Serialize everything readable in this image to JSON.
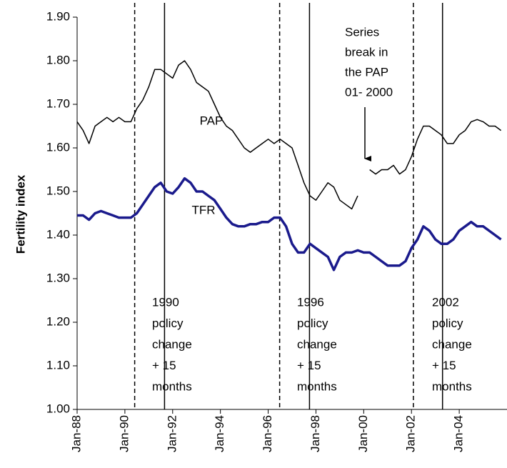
{
  "chart_data": {
    "type": "line",
    "y_label": "Fertility index",
    "x": [
      1988,
      1988.25,
      1988.5,
      1988.75,
      1989,
      1989.25,
      1989.5,
      1989.75,
      1990,
      1990.25,
      1990.5,
      1990.75,
      1991,
      1991.25,
      1991.5,
      1991.75,
      1992,
      1992.25,
      1992.5,
      1992.75,
      1993,
      1993.25,
      1993.5,
      1993.75,
      1994,
      1994.25,
      1994.5,
      1994.75,
      1995,
      1995.25,
      1995.5,
      1995.75,
      1996,
      1996.25,
      1996.5,
      1996.75,
      1997,
      1997.25,
      1997.5,
      1997.75,
      1998,
      1998.25,
      1998.5,
      1998.75,
      1999,
      1999.25,
      1999.5,
      1999.75,
      2000,
      2000.25,
      2000.5,
      2000.75,
      2001,
      2001.25,
      2001.5,
      2001.75,
      2002,
      2002.25,
      2002.5,
      2002.75,
      2003,
      2003.25,
      2003.5,
      2003.75,
      2004,
      2004.25,
      2004.5,
      2004.75,
      2005,
      2005.25,
      2005.5,
      2005.75
    ],
    "series": [
      {
        "name": "PAP",
        "color": "#000000",
        "width": 1.5,
        "values": [
          1.66,
          1.64,
          1.61,
          1.65,
          1.66,
          1.67,
          1.66,
          1.67,
          1.66,
          1.66,
          1.69,
          1.71,
          1.74,
          1.78,
          1.78,
          1.77,
          1.76,
          1.79,
          1.8,
          1.78,
          1.75,
          1.74,
          1.73,
          1.7,
          1.67,
          1.65,
          1.64,
          1.62,
          1.6,
          1.59,
          1.6,
          1.61,
          1.62,
          1.61,
          1.62,
          1.61,
          1.6,
          1.56,
          1.52,
          1.49,
          1.48,
          1.5,
          1.52,
          1.51,
          1.48,
          1.47,
          1.46,
          1.49,
          null,
          1.55,
          1.54,
          1.55,
          1.55,
          1.56,
          1.54,
          1.55,
          1.58,
          1.62,
          1.65,
          1.65,
          1.64,
          1.63,
          1.61,
          1.61,
          1.63,
          1.64,
          1.66,
          1.665,
          1.66,
          1.65,
          1.65,
          1.64
        ]
      },
      {
        "name": "TFR",
        "color": "#1a1a8c",
        "width": 3.5,
        "values": [
          1.445,
          1.445,
          1.435,
          1.45,
          1.455,
          1.45,
          1.445,
          1.44,
          1.44,
          1.44,
          1.45,
          1.47,
          1.49,
          1.51,
          1.52,
          1.5,
          1.495,
          1.51,
          1.53,
          1.52,
          1.5,
          1.5,
          1.49,
          1.48,
          1.46,
          1.44,
          1.425,
          1.42,
          1.42,
          1.425,
          1.425,
          1.43,
          1.43,
          1.44,
          1.44,
          1.42,
          1.38,
          1.36,
          1.36,
          1.38,
          1.37,
          1.36,
          1.35,
          1.32,
          1.35,
          1.36,
          1.36,
          1.365,
          1.36,
          1.36,
          1.35,
          1.34,
          1.33,
          1.33,
          1.33,
          1.34,
          1.37,
          1.39,
          1.42,
          1.41,
          1.39,
          1.38,
          1.38,
          1.39,
          1.41,
          1.42,
          1.43,
          1.42,
          1.42,
          1.41,
          1.4,
          1.39
        ]
      }
    ],
    "xlim": [
      1988,
      2006
    ],
    "xticks": [
      {
        "value": 1988,
        "label": "Jan-88"
      },
      {
        "value": 1990,
        "label": "Jan-90"
      },
      {
        "value": 1992,
        "label": "Jan-92"
      },
      {
        "value": 1994,
        "label": "Jan-94"
      },
      {
        "value": 1996,
        "label": "Jan-96"
      },
      {
        "value": 1998,
        "label": "Jan-98"
      },
      {
        "value": 2000,
        "label": "Jan-00"
      },
      {
        "value": 2002,
        "label": "Jan-02"
      },
      {
        "value": 2004,
        "label": "Jan-04"
      }
    ],
    "ylim": [
      1.0,
      1.9
    ],
    "yticks": [
      {
        "value": 1,
        "label": "1.00"
      },
      {
        "value": 1.1,
        "label": "1.10"
      },
      {
        "value": 1.2,
        "label": "1.20"
      },
      {
        "value": 1.3,
        "label": "1.30"
      },
      {
        "value": 1.4,
        "label": "1.40"
      },
      {
        "value": 1.5,
        "label": "1.50"
      },
      {
        "value": 1.6,
        "label": "1.60"
      },
      {
        "value": 1.7,
        "label": "1.70"
      },
      {
        "value": 1.8,
        "label": "1.80"
      },
      {
        "value": 1.9,
        "label": "1.90"
      }
    ],
    "vlines": [
      {
        "x": 1990.41,
        "style": "dashed"
      },
      {
        "x": 1991.66,
        "style": "solid"
      },
      {
        "x": 1996.48,
        "style": "dashed"
      },
      {
        "x": 1997.73,
        "style": "solid"
      },
      {
        "x": 2002.08,
        "style": "dashed"
      },
      {
        "x": 2003.3,
        "style": "solid"
      }
    ],
    "annotations": [
      {
        "lines": [
          "1990",
          "policy",
          "change",
          "+ 15",
          "months"
        ]
      },
      {
        "lines": [
          "1996",
          "policy",
          "change",
          "+ 15",
          "months"
        ]
      },
      {
        "lines": [
          "2002",
          "policy",
          "change",
          "+ 15",
          "months"
        ]
      },
      {
        "lines": [
          "Series",
          "break in",
          "the PAP",
          "01- 2000"
        ]
      }
    ]
  }
}
